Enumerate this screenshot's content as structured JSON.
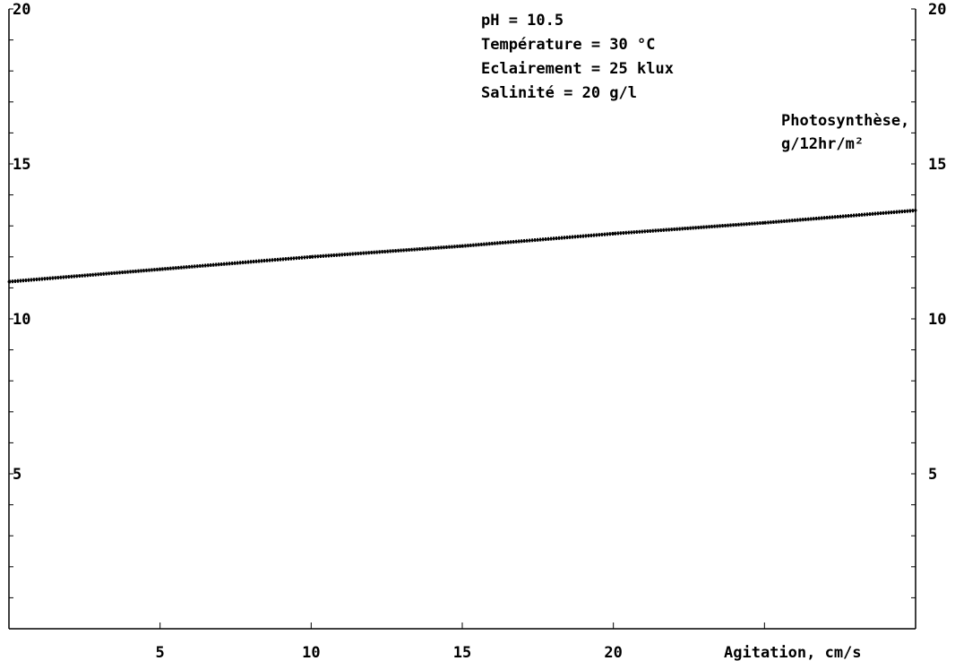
{
  "chart_data": {
    "type": "line",
    "annotations": [
      "pH = 10.5",
      "Température = 30 °C",
      "Eclairement = 25 klux",
      "Salinité = 20 g/l"
    ],
    "ylabel": [
      "Photosynthèse,",
      "g/12hr/m²"
    ],
    "xlabel": "Agitation, cm/s",
    "xlim": [
      0,
      30
    ],
    "ylim": [
      0,
      20
    ],
    "x_ticks": [
      "5",
      "10",
      "15",
      "20"
    ],
    "y_ticks": [
      "5",
      "10",
      "15",
      "20"
    ],
    "grid": false,
    "series": [
      {
        "color": "#000000",
        "x": [
          0,
          5,
          10,
          15,
          20,
          25,
          30
        ],
        "y": [
          11.2,
          11.6,
          12.0,
          12.35,
          12.75,
          13.1,
          13.5
        ]
      }
    ]
  }
}
